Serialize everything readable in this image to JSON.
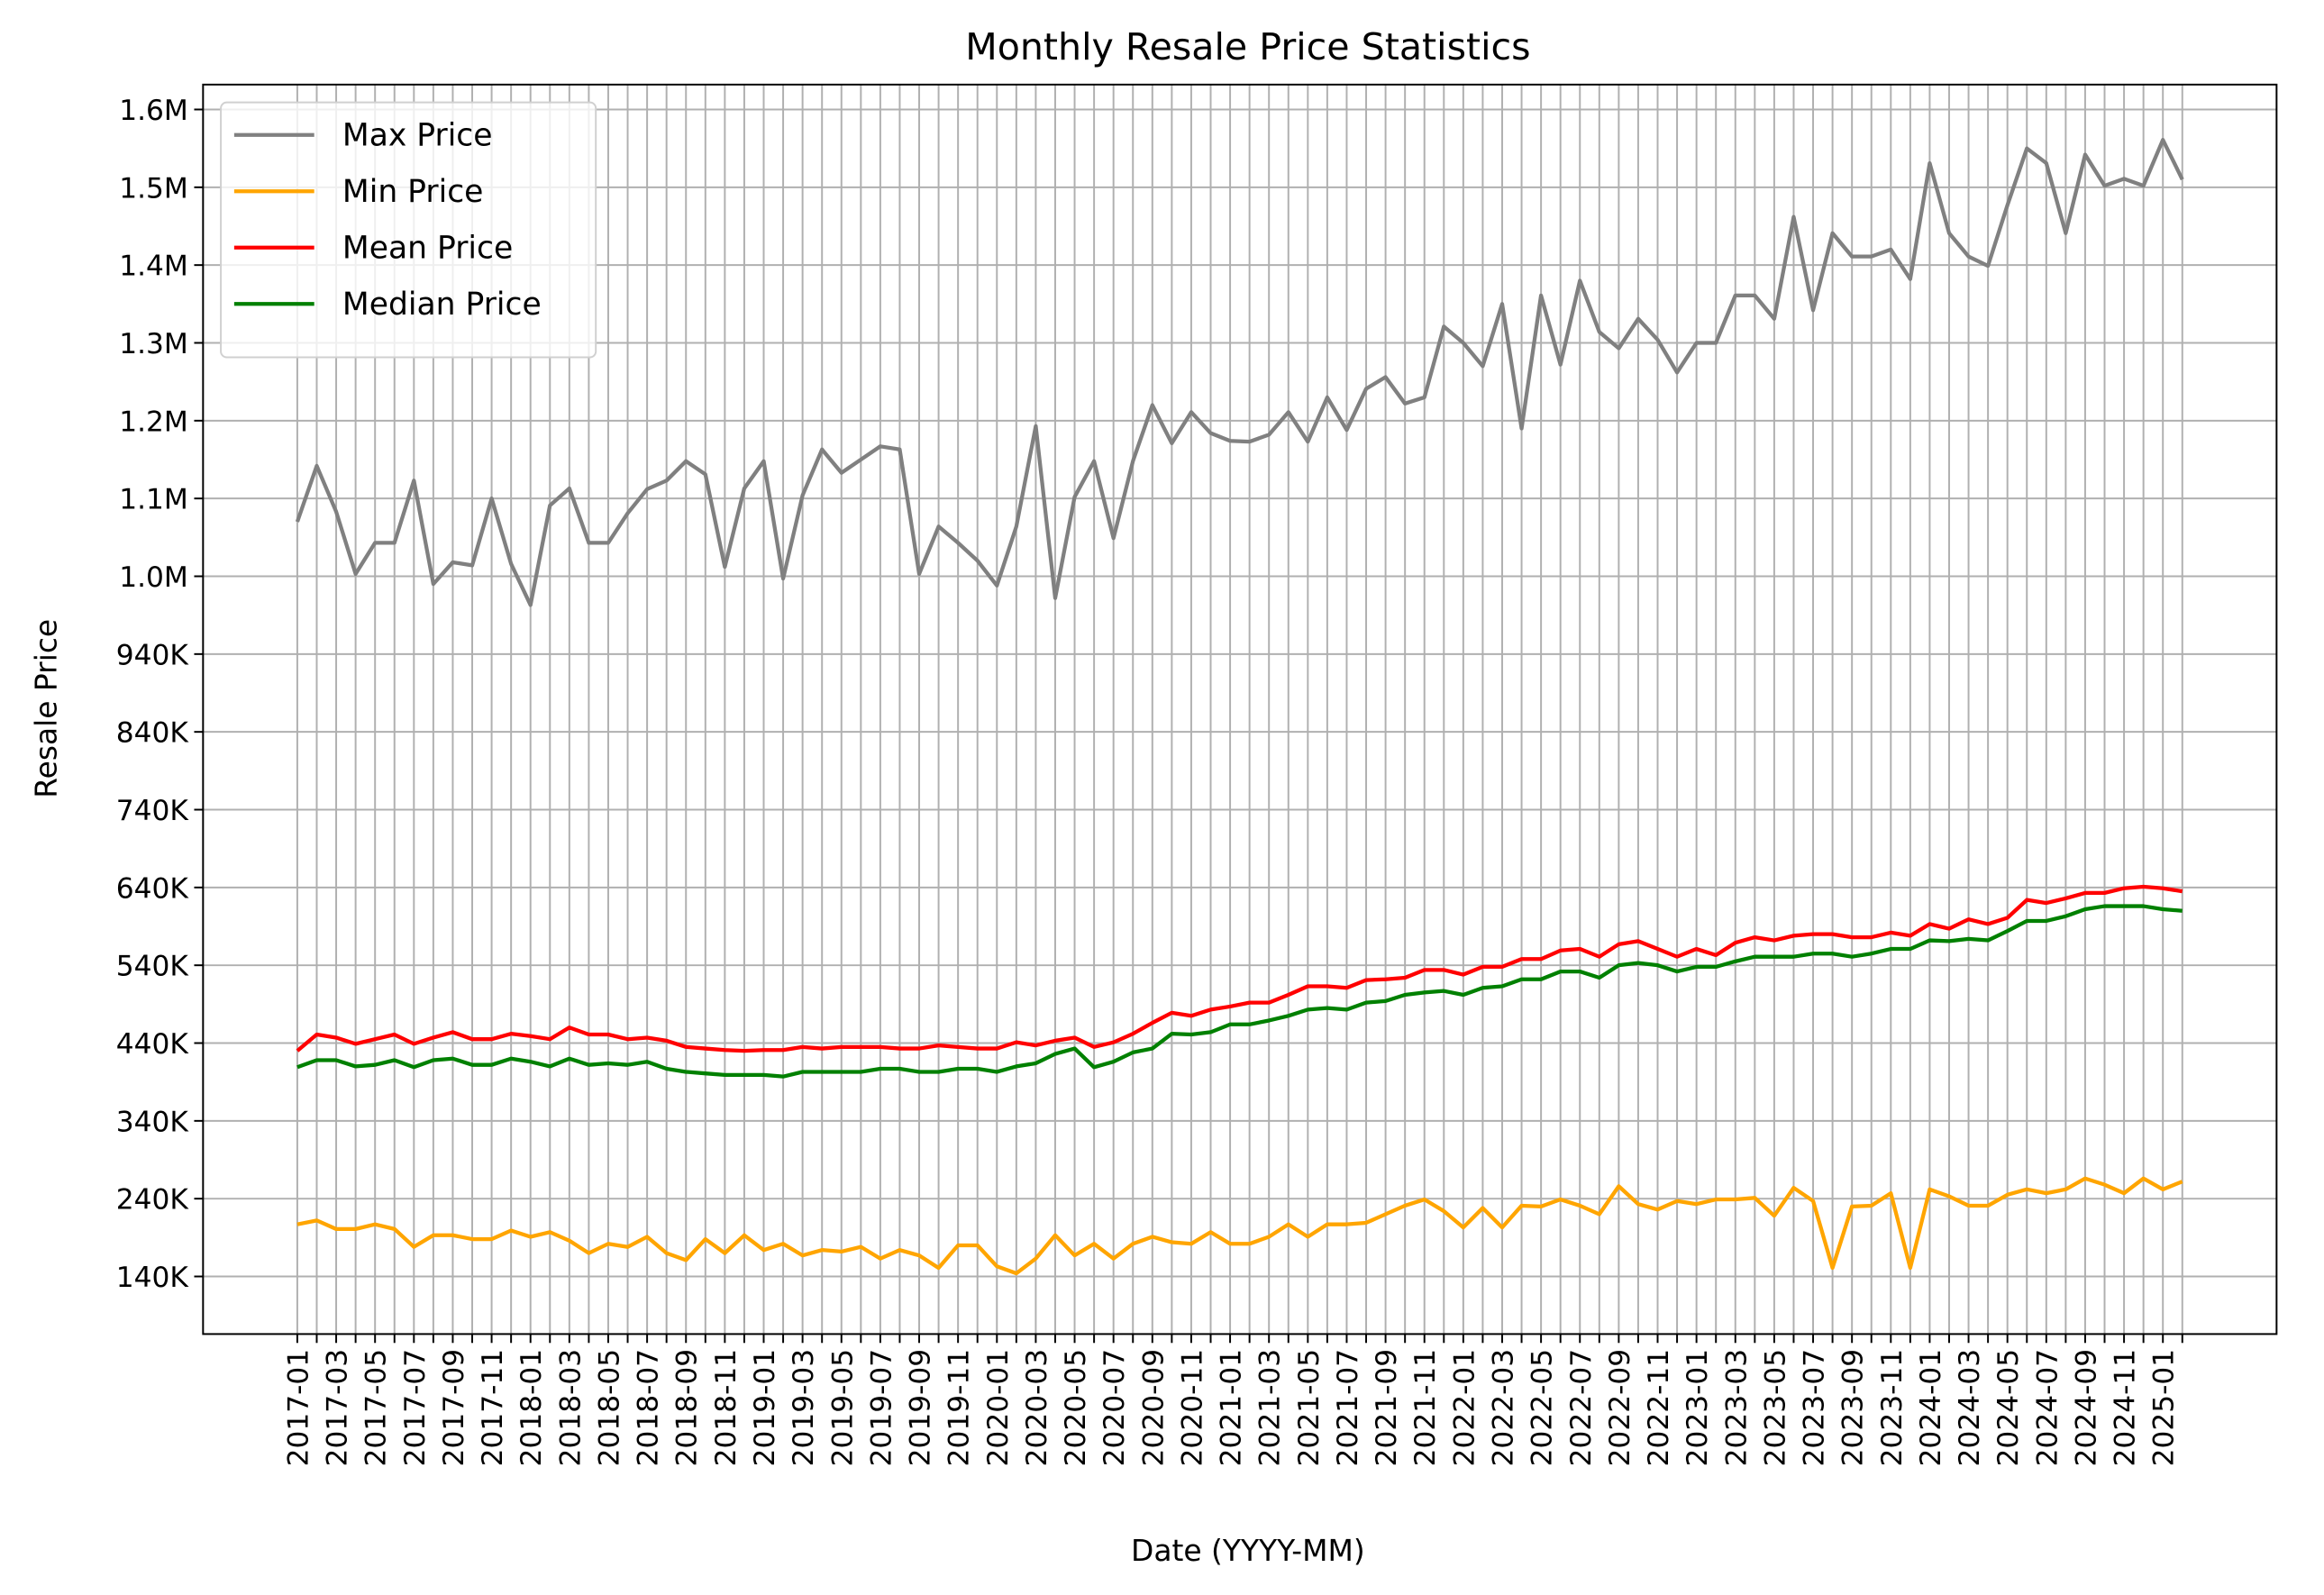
{
  "chart_data": {
    "type": "line",
    "title": "Monthly Resale Price Statistics",
    "xlabel": "Date (YYYY-MM)",
    "ylabel": "Resale Price",
    "categories": [
      "2017-01",
      null,
      "2017-03",
      null,
      "2017-05",
      null,
      "2017-07",
      null,
      "2017-09",
      null,
      "2017-11",
      null,
      "2018-01",
      null,
      "2018-03",
      null,
      "2018-05",
      null,
      "2018-07",
      null,
      "2018-09",
      null,
      "2018-11",
      null,
      "2019-01",
      null,
      "2019-03",
      null,
      "2019-05",
      null,
      "2019-07",
      null,
      "2019-09",
      null,
      "2019-11",
      null,
      "2020-01",
      null,
      "2020-03",
      null,
      "2020-05",
      null,
      "2020-07",
      null,
      "2020-09",
      null,
      "2020-11",
      null,
      "2021-01",
      null,
      "2021-03",
      null,
      "2021-05",
      null,
      "2021-07",
      null,
      "2021-09",
      null,
      "2021-11",
      null,
      "2022-01",
      null,
      "2022-03",
      null,
      "2022-05",
      null,
      "2022-07",
      null,
      "2022-09",
      null,
      "2022-11",
      null,
      "2023-01",
      null,
      "2023-03",
      null,
      "2023-05",
      null,
      "2023-07",
      null,
      "2023-09",
      null,
      "2023-11",
      null,
      "2024-01",
      null,
      "2024-03",
      null,
      "2024-05",
      null,
      "2024-07",
      null,
      "2024-09",
      null,
      "2024-11",
      null,
      "2025-01",
      null
    ],
    "series": [
      {
        "name": "Max Price",
        "color": "#808080",
        "values": [
          1110000,
          1182000,
          1123000,
          1043000,
          1083000,
          1083000,
          1163000,
          1030000,
          1058000,
          1054000,
          1140000,
          1056000,
          1003000,
          1131000,
          1153000,
          1083000,
          1083000,
          1121000,
          1152000,
          1163000,
          1188000,
          1171000,
          1052000,
          1153000,
          1188000,
          1037000,
          1144000,
          1203000,
          1173000,
          1190000,
          1207000,
          1203000,
          1043000,
          1104000,
          1083000,
          1060000,
          1028000,
          1104000,
          1233000,
          1012000,
          1142000,
          1188000,
          1089000,
          1188000,
          1260000,
          1211000,
          1251000,
          1224000,
          1214000,
          1213000,
          1222000,
          1251000,
          1213000,
          1270000,
          1228000,
          1281000,
          1296000,
          1262000,
          1270000,
          1361000,
          1340000,
          1310000,
          1390000,
          1230000,
          1401000,
          1312000,
          1420000,
          1354000,
          1333000,
          1371000,
          1344000,
          1302000,
          1340000,
          1340000,
          1401000,
          1401000,
          1371000,
          1502000,
          1382000,
          1481000,
          1451000,
          1451000,
          1460000,
          1422000,
          1571000,
          1481000,
          1451000,
          1439000,
          1517000,
          1590000,
          1571000,
          1481000,
          1582000,
          1542000,
          1551000,
          1542000,
          1601000,
          1550000
        ]
      },
      {
        "name": "Min Price",
        "color": "#ffa500",
        "values": [
          207000,
          212000,
          201000,
          201000,
          207000,
          201000,
          178000,
          193000,
          193000,
          188000,
          188000,
          199000,
          191000,
          197000,
          186000,
          170000,
          182000,
          178000,
          191000,
          170000,
          161000,
          188000,
          170000,
          193000,
          174000,
          182000,
          167000,
          174000,
          172000,
          178000,
          163000,
          174000,
          167000,
          151000,
          180000,
          180000,
          153000,
          144000,
          163000,
          193000,
          167000,
          182000,
          163000,
          182000,
          191000,
          184000,
          182000,
          197000,
          182000,
          182000,
          191000,
          207000,
          191000,
          207000,
          207000,
          209000,
          220000,
          231000,
          239000,
          224000,
          203000,
          228000,
          203000,
          231000,
          230000,
          239000,
          231000,
          220000,
          256000,
          233000,
          226000,
          237000,
          233000,
          239000,
          239000,
          241000,
          218000,
          254000,
          237000,
          151000,
          230000,
          231000,
          247000,
          151000,
          252000,
          243000,
          231000,
          231000,
          245000,
          252000,
          247000,
          252000,
          266000,
          258000,
          247000,
          266000,
          252000,
          262000
        ]
      },
      {
        "name": "Mean Price",
        "color": "#ff0000",
        "values": [
          430000,
          451000,
          447000,
          439000,
          445000,
          451000,
          439000,
          447000,
          454000,
          445000,
          445000,
          452000,
          449000,
          445000,
          460000,
          451000,
          451000,
          445000,
          447000,
          443000,
          435000,
          433000,
          431000,
          430000,
          431000,
          431000,
          435000,
          433000,
          435000,
          435000,
          435000,
          433000,
          433000,
          437000,
          435000,
          433000,
          433000,
          441000,
          437000,
          443000,
          447000,
          435000,
          441000,
          452000,
          466000,
          479000,
          475000,
          483000,
          487000,
          492000,
          492000,
          502000,
          513000,
          513000,
          511000,
          521000,
          522000,
          524000,
          534000,
          534000,
          528000,
          538000,
          538000,
          548000,
          548000,
          559000,
          561000,
          551000,
          567000,
          571000,
          561000,
          551000,
          561000,
          553000,
          569000,
          576000,
          572000,
          578000,
          580000,
          580000,
          576000,
          576000,
          582000,
          578000,
          593000,
          587000,
          599000,
          593000,
          601000,
          624000,
          620000,
          626000,
          633000,
          633000,
          639000,
          641000,
          639000,
          635000
        ]
      },
      {
        "name": "Median Price",
        "color": "#008000",
        "values": [
          409000,
          418000,
          418000,
          410000,
          412000,
          418000,
          409000,
          418000,
          420000,
          412000,
          412000,
          420000,
          416000,
          410000,
          420000,
          412000,
          414000,
          412000,
          416000,
          407000,
          403000,
          401000,
          399000,
          399000,
          399000,
          397000,
          403000,
          403000,
          403000,
          403000,
          407000,
          407000,
          403000,
          403000,
          407000,
          407000,
          403000,
          410000,
          414000,
          426000,
          433000,
          409000,
          416000,
          428000,
          433000,
          452000,
          451000,
          454000,
          464000,
          464000,
          469000,
          475000,
          483000,
          485000,
          483000,
          492000,
          494000,
          502000,
          505000,
          507000,
          502000,
          511000,
          513000,
          522000,
          522000,
          532000,
          532000,
          524000,
          540000,
          543000,
          540000,
          532000,
          538000,
          538000,
          545000,
          551000,
          551000,
          551000,
          555000,
          555000,
          551000,
          555000,
          561000,
          561000,
          572000,
          571000,
          574000,
          572000,
          584000,
          597000,
          597000,
          603000,
          612000,
          616000,
          616000,
          616000,
          612000,
          610000
        ]
      }
    ],
    "xlim": [
      -4.85,
      101.85
    ],
    "ylim": [
      66000,
      1672000
    ],
    "yticks": [
      {
        "value": 140000,
        "label": "140K"
      },
      {
        "value": 240000,
        "label": "240K"
      },
      {
        "value": 340000,
        "label": "340K"
      },
      {
        "value": 440000,
        "label": "440K"
      },
      {
        "value": 540000,
        "label": "540K"
      },
      {
        "value": 640000,
        "label": "640K"
      },
      {
        "value": 740000,
        "label": "740K"
      },
      {
        "value": 840000,
        "label": "840K"
      },
      {
        "value": 940000,
        "label": "940K"
      },
      {
        "value": 1040000,
        "label": "1.0M"
      },
      {
        "value": 1140000,
        "label": "1.1M"
      },
      {
        "value": 1240000,
        "label": "1.2M"
      },
      {
        "value": 1340000,
        "label": "1.3M"
      },
      {
        "value": 1440000,
        "label": "1.4M"
      },
      {
        "value": 1540000,
        "label": "1.5M"
      },
      {
        "value": 1640000,
        "label": "1.6M"
      }
    ],
    "grid": true,
    "legend": "upper left"
  }
}
